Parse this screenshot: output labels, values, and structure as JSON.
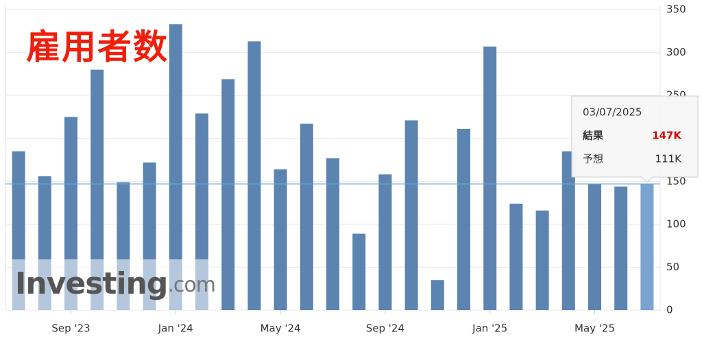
{
  "chart_data": {
    "type": "bar",
    "title": "雇用者数",
    "categories": [
      null,
      null,
      "Sep '23",
      null,
      null,
      null,
      "Jan '24",
      null,
      null,
      null,
      "May '24",
      null,
      null,
      null,
      "Sep '24",
      null,
      null,
      null,
      "Jan '25",
      null,
      null,
      null,
      "May '25",
      null,
      null
    ],
    "values": [
      185,
      156,
      225,
      280,
      149,
      172,
      333,
      229,
      269,
      313,
      164,
      217,
      177,
      89,
      158,
      221,
      35,
      211,
      307,
      124,
      116,
      185,
      147,
      144,
      147
    ],
    "color": "#5b84b1",
    "highlight_color": "#7ba3d0",
    "ylim": [
      0,
      350
    ],
    "yticks": [
      0,
      50,
      100,
      150,
      200,
      250,
      300,
      350
    ],
    "grid": true,
    "watermark": [
      "Investing",
      ".com"
    ],
    "tooltip": {
      "index": 24,
      "date": "03/07/2025",
      "rows": [
        {
          "label": "結果",
          "value": "147K"
        },
        {
          "label": "予想",
          "value": "111K"
        }
      ]
    }
  }
}
